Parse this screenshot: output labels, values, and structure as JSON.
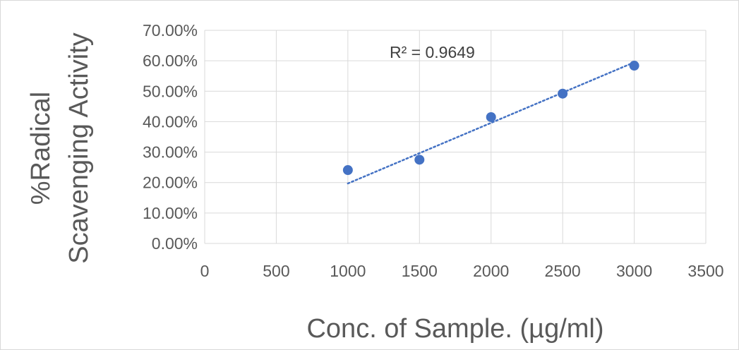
{
  "chart_data": {
    "type": "scatter",
    "title": "",
    "xlabel": "Conc. of Sample. (µg/ml)",
    "ylabel_line1": "%Radical",
    "ylabel_line2": "Scavenging Activity",
    "xlim": [
      0,
      3500
    ],
    "ylim": [
      0,
      0.7
    ],
    "xticks": [
      0,
      500,
      1000,
      1500,
      2000,
      2500,
      3000,
      3500
    ],
    "yticks": [
      0,
      0.1,
      0.2,
      0.3,
      0.4,
      0.5,
      0.6,
      0.7
    ],
    "xtick_labels": [
      "0",
      "500",
      "1000",
      "1500",
      "2000",
      "2500",
      "3000",
      "3500"
    ],
    "ytick_labels": [
      "0.00%",
      "10.00%",
      "20.00%",
      "30.00%",
      "40.00%",
      "50.00%",
      "60.00%",
      "70.00%"
    ],
    "grid": true,
    "series": [
      {
        "x": [
          1000,
          1500,
          2000,
          2500,
          3000
        ],
        "y": [
          0.241,
          0.275,
          0.415,
          0.492,
          0.584
        ],
        "color": "#4472c4"
      }
    ],
    "trendline": {
      "type": "linear",
      "x_start": 1000,
      "x_end": 3000,
      "y_start": 0.197,
      "y_end": 0.595,
      "style": "dotted",
      "color": "#4472c4",
      "r2_label": "R² = 0.9649"
    }
  }
}
